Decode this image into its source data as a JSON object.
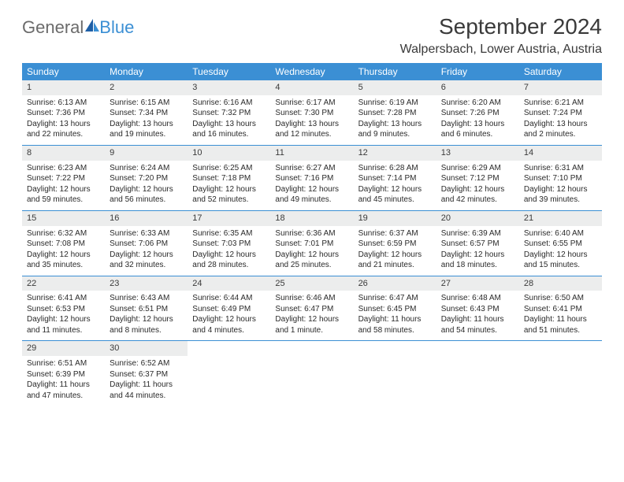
{
  "brand": {
    "part1": "General",
    "part2": "Blue"
  },
  "title": "September 2024",
  "location": "Walpersbach, Lower Austria, Austria",
  "colors": {
    "header_bg": "#3b8fd4",
    "daynum_bg": "#eceded",
    "text": "#2a2a2a",
    "title_text": "#3a3a3a",
    "logo_gray": "#6b6b6b"
  },
  "weekdays": [
    "Sunday",
    "Monday",
    "Tuesday",
    "Wednesday",
    "Thursday",
    "Friday",
    "Saturday"
  ],
  "weeks": [
    [
      {
        "n": "1",
        "sunrise": "Sunrise: 6:13 AM",
        "sunset": "Sunset: 7:36 PM",
        "d1": "Daylight: 13 hours",
        "d2": "and 22 minutes."
      },
      {
        "n": "2",
        "sunrise": "Sunrise: 6:15 AM",
        "sunset": "Sunset: 7:34 PM",
        "d1": "Daylight: 13 hours",
        "d2": "and 19 minutes."
      },
      {
        "n": "3",
        "sunrise": "Sunrise: 6:16 AM",
        "sunset": "Sunset: 7:32 PM",
        "d1": "Daylight: 13 hours",
        "d2": "and 16 minutes."
      },
      {
        "n": "4",
        "sunrise": "Sunrise: 6:17 AM",
        "sunset": "Sunset: 7:30 PM",
        "d1": "Daylight: 13 hours",
        "d2": "and 12 minutes."
      },
      {
        "n": "5",
        "sunrise": "Sunrise: 6:19 AM",
        "sunset": "Sunset: 7:28 PM",
        "d1": "Daylight: 13 hours",
        "d2": "and 9 minutes."
      },
      {
        "n": "6",
        "sunrise": "Sunrise: 6:20 AM",
        "sunset": "Sunset: 7:26 PM",
        "d1": "Daylight: 13 hours",
        "d2": "and 6 minutes."
      },
      {
        "n": "7",
        "sunrise": "Sunrise: 6:21 AM",
        "sunset": "Sunset: 7:24 PM",
        "d1": "Daylight: 13 hours",
        "d2": "and 2 minutes."
      }
    ],
    [
      {
        "n": "8",
        "sunrise": "Sunrise: 6:23 AM",
        "sunset": "Sunset: 7:22 PM",
        "d1": "Daylight: 12 hours",
        "d2": "and 59 minutes."
      },
      {
        "n": "9",
        "sunrise": "Sunrise: 6:24 AM",
        "sunset": "Sunset: 7:20 PM",
        "d1": "Daylight: 12 hours",
        "d2": "and 56 minutes."
      },
      {
        "n": "10",
        "sunrise": "Sunrise: 6:25 AM",
        "sunset": "Sunset: 7:18 PM",
        "d1": "Daylight: 12 hours",
        "d2": "and 52 minutes."
      },
      {
        "n": "11",
        "sunrise": "Sunrise: 6:27 AM",
        "sunset": "Sunset: 7:16 PM",
        "d1": "Daylight: 12 hours",
        "d2": "and 49 minutes."
      },
      {
        "n": "12",
        "sunrise": "Sunrise: 6:28 AM",
        "sunset": "Sunset: 7:14 PM",
        "d1": "Daylight: 12 hours",
        "d2": "and 45 minutes."
      },
      {
        "n": "13",
        "sunrise": "Sunrise: 6:29 AM",
        "sunset": "Sunset: 7:12 PM",
        "d1": "Daylight: 12 hours",
        "d2": "and 42 minutes."
      },
      {
        "n": "14",
        "sunrise": "Sunrise: 6:31 AM",
        "sunset": "Sunset: 7:10 PM",
        "d1": "Daylight: 12 hours",
        "d2": "and 39 minutes."
      }
    ],
    [
      {
        "n": "15",
        "sunrise": "Sunrise: 6:32 AM",
        "sunset": "Sunset: 7:08 PM",
        "d1": "Daylight: 12 hours",
        "d2": "and 35 minutes."
      },
      {
        "n": "16",
        "sunrise": "Sunrise: 6:33 AM",
        "sunset": "Sunset: 7:06 PM",
        "d1": "Daylight: 12 hours",
        "d2": "and 32 minutes."
      },
      {
        "n": "17",
        "sunrise": "Sunrise: 6:35 AM",
        "sunset": "Sunset: 7:03 PM",
        "d1": "Daylight: 12 hours",
        "d2": "and 28 minutes."
      },
      {
        "n": "18",
        "sunrise": "Sunrise: 6:36 AM",
        "sunset": "Sunset: 7:01 PM",
        "d1": "Daylight: 12 hours",
        "d2": "and 25 minutes."
      },
      {
        "n": "19",
        "sunrise": "Sunrise: 6:37 AM",
        "sunset": "Sunset: 6:59 PM",
        "d1": "Daylight: 12 hours",
        "d2": "and 21 minutes."
      },
      {
        "n": "20",
        "sunrise": "Sunrise: 6:39 AM",
        "sunset": "Sunset: 6:57 PM",
        "d1": "Daylight: 12 hours",
        "d2": "and 18 minutes."
      },
      {
        "n": "21",
        "sunrise": "Sunrise: 6:40 AM",
        "sunset": "Sunset: 6:55 PM",
        "d1": "Daylight: 12 hours",
        "d2": "and 15 minutes."
      }
    ],
    [
      {
        "n": "22",
        "sunrise": "Sunrise: 6:41 AM",
        "sunset": "Sunset: 6:53 PM",
        "d1": "Daylight: 12 hours",
        "d2": "and 11 minutes."
      },
      {
        "n": "23",
        "sunrise": "Sunrise: 6:43 AM",
        "sunset": "Sunset: 6:51 PM",
        "d1": "Daylight: 12 hours",
        "d2": "and 8 minutes."
      },
      {
        "n": "24",
        "sunrise": "Sunrise: 6:44 AM",
        "sunset": "Sunset: 6:49 PM",
        "d1": "Daylight: 12 hours",
        "d2": "and 4 minutes."
      },
      {
        "n": "25",
        "sunrise": "Sunrise: 6:46 AM",
        "sunset": "Sunset: 6:47 PM",
        "d1": "Daylight: 12 hours",
        "d2": "and 1 minute."
      },
      {
        "n": "26",
        "sunrise": "Sunrise: 6:47 AM",
        "sunset": "Sunset: 6:45 PM",
        "d1": "Daylight: 11 hours",
        "d2": "and 58 minutes."
      },
      {
        "n": "27",
        "sunrise": "Sunrise: 6:48 AM",
        "sunset": "Sunset: 6:43 PM",
        "d1": "Daylight: 11 hours",
        "d2": "and 54 minutes."
      },
      {
        "n": "28",
        "sunrise": "Sunrise: 6:50 AM",
        "sunset": "Sunset: 6:41 PM",
        "d1": "Daylight: 11 hours",
        "d2": "and 51 minutes."
      }
    ],
    [
      {
        "n": "29",
        "sunrise": "Sunrise: 6:51 AM",
        "sunset": "Sunset: 6:39 PM",
        "d1": "Daylight: 11 hours",
        "d2": "and 47 minutes."
      },
      {
        "n": "30",
        "sunrise": "Sunrise: 6:52 AM",
        "sunset": "Sunset: 6:37 PM",
        "d1": "Daylight: 11 hours",
        "d2": "and 44 minutes."
      },
      null,
      null,
      null,
      null,
      null
    ]
  ]
}
